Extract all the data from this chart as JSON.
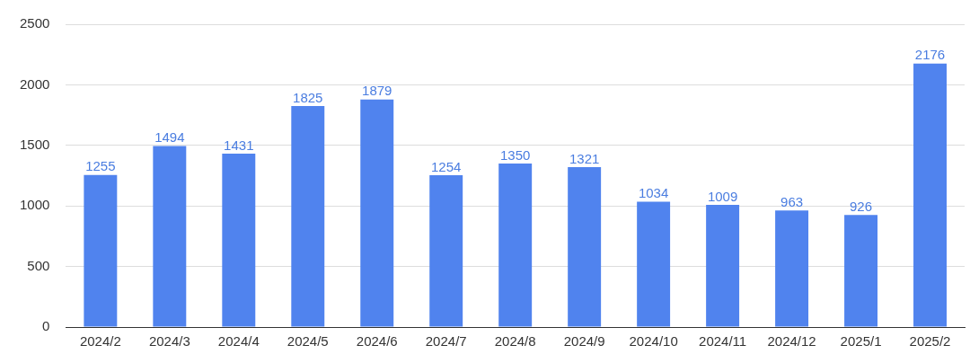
{
  "chart_data": {
    "type": "bar",
    "categories": [
      "2024/2",
      "2024/3",
      "2024/4",
      "2024/5",
      "2024/6",
      "2024/7",
      "2024/8",
      "2024/9",
      "2024/10",
      "2024/11",
      "2024/12",
      "2025/1",
      "2025/2"
    ],
    "values": [
      1255,
      1494,
      1431,
      1825,
      1879,
      1254,
      1350,
      1321,
      1034,
      1009,
      963,
      926,
      2176
    ],
    "color": "#5083ee",
    "ylim": [
      0,
      2500
    ],
    "yticks": [
      0,
      500,
      1000,
      1500,
      2000,
      2500
    ],
    "grid": "y",
    "data_labels": true,
    "legend": false
  }
}
